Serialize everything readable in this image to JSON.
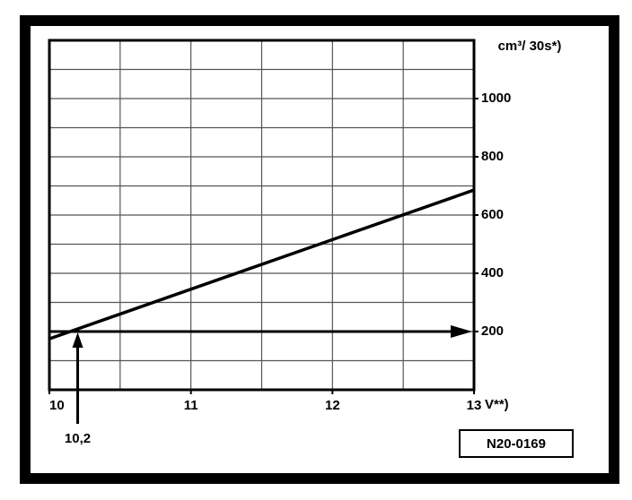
{
  "chart_data": {
    "type": "line",
    "x": [
      10,
      13
    ],
    "series": [
      {
        "color": "#000000",
        "values": [
          175,
          686
        ]
      }
    ],
    "xlim": [
      10,
      13
    ],
    "ylim": [
      0,
      1200
    ],
    "xticks": [
      10,
      11,
      12,
      13
    ],
    "yticks": [
      200,
      400,
      600,
      800,
      1000
    ],
    "xgrid": [
      10,
      10.5,
      11,
      11.5,
      12,
      12.5,
      13
    ],
    "ygrid": [
      0,
      100,
      200,
      300,
      400,
      500,
      600,
      700,
      800,
      900,
      1000,
      1100,
      1200
    ],
    "grid": true,
    "ylabel": "cm³/ 30s*)",
    "xlabel": "V**)",
    "markers": {
      "x": {
        "value": 10.2,
        "label": "10,2"
      },
      "y": 200
    },
    "figure_id": "N20-0169"
  }
}
